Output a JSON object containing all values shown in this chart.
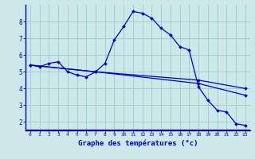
{
  "title": "Graphe des températures (°c)",
  "bg_color": "#cce8e8",
  "grid_color": "#99cccc",
  "line_color": "#0000cc",
  "spine_color": "#0000cc",
  "xlim": [
    -0.5,
    23.5
  ],
  "ylim": [
    1.5,
    9.0
  ],
  "xticks": [
    0,
    1,
    2,
    3,
    4,
    5,
    6,
    7,
    8,
    9,
    10,
    11,
    12,
    13,
    14,
    15,
    16,
    17,
    18,
    19,
    20,
    21,
    22,
    23
  ],
  "yticks": [
    2,
    3,
    4,
    5,
    6,
    7,
    8
  ],
  "series": [
    {
      "x": [
        0,
        1,
        2,
        3,
        4,
        5,
        6,
        7,
        8,
        9,
        10,
        11,
        12,
        13,
        14,
        15,
        16,
        17,
        18,
        19,
        20,
        21,
        22,
        23
      ],
      "y": [
        5.4,
        5.3,
        5.5,
        5.6,
        5.0,
        4.8,
        4.7,
        5.0,
        5.5,
        6.9,
        7.7,
        8.6,
        8.5,
        8.2,
        7.6,
        7.2,
        6.5,
        6.3,
        4.1,
        3.3,
        2.7,
        2.6,
        1.9,
        1.8
      ]
    },
    {
      "x": [
        0,
        7,
        18,
        23
      ],
      "y": [
        5.4,
        5.0,
        4.5,
        4.0
      ]
    },
    {
      "x": [
        0,
        7,
        18,
        23
      ],
      "y": [
        5.4,
        5.0,
        4.3,
        3.6
      ]
    }
  ]
}
